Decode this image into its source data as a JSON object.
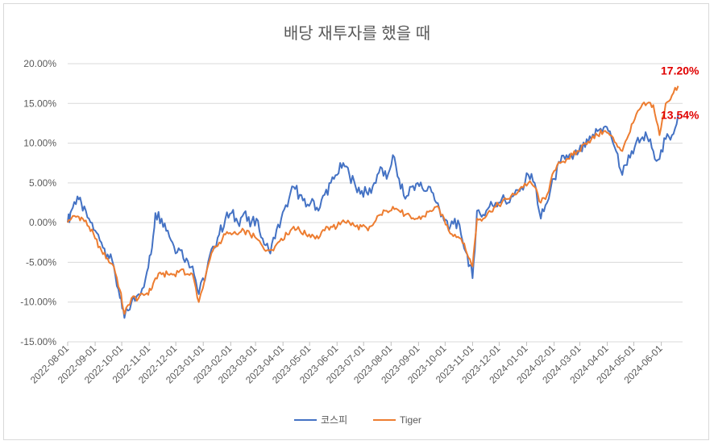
{
  "chart_data": {
    "type": "line",
    "title": "배당 재투자를 했을 때",
    "xlabel": "",
    "ylabel": "",
    "ylim": [
      -15,
      20
    ],
    "y_ticks": [
      "20.00%",
      "15.00%",
      "10.00%",
      "5.00%",
      "0.00%",
      "-5.00%",
      "-10.00%",
      "-15.00%"
    ],
    "x_ticks": [
      "2022-08-01",
      "2022-09-01",
      "2022-10-01",
      "2022-11-01",
      "2022-12-01",
      "2023-01-01",
      "2023-02-01",
      "2023-03-01",
      "2023-04-01",
      "2023-05-01",
      "2023-06-01",
      "2023-07-01",
      "2023-08-01",
      "2023-09-01",
      "2023-10-01",
      "2023-11-01",
      "2023-12-01",
      "2024-01-01",
      "2024-02-01",
      "2024-03-01",
      "2024-04-01",
      "2024-05-01",
      "2024-06-01"
    ],
    "grid": true,
    "legend": "bottom",
    "series": [
      {
        "name": "코스피",
        "color": "#4472c4",
        "points": [
          [
            "2022-08-01",
            0.0
          ],
          [
            "2022-08-05",
            1.5
          ],
          [
            "2022-08-12",
            3.3
          ],
          [
            "2022-08-18",
            1.5
          ],
          [
            "2022-08-25",
            0.5
          ],
          [
            "2022-09-01",
            -1.0
          ],
          [
            "2022-09-08",
            -2.5
          ],
          [
            "2022-09-15",
            -4.0
          ],
          [
            "2022-09-22",
            -5.5
          ],
          [
            "2022-09-29",
            -9.5
          ],
          [
            "2022-10-04",
            -12.0
          ],
          [
            "2022-10-12",
            -10.0
          ],
          [
            "2022-10-20",
            -9.0
          ],
          [
            "2022-10-28",
            -7.0
          ],
          [
            "2022-11-03",
            -4.0
          ],
          [
            "2022-11-08",
            1.2
          ],
          [
            "2022-11-15",
            0.5
          ],
          [
            "2022-11-22",
            -1.0
          ],
          [
            "2022-11-29",
            -3.0
          ],
          [
            "2022-12-06",
            -3.5
          ],
          [
            "2022-12-13",
            -4.5
          ],
          [
            "2022-12-20",
            -5.5
          ],
          [
            "2022-12-27",
            -9.0
          ],
          [
            "2023-01-05",
            -6.0
          ],
          [
            "2023-01-12",
            -3.0
          ],
          [
            "2023-01-19",
            -1.5
          ],
          [
            "2023-01-26",
            0.5
          ],
          [
            "2023-02-02",
            1.2
          ],
          [
            "2023-02-09",
            0.0
          ],
          [
            "2023-02-16",
            1.2
          ],
          [
            "2023-02-23",
            -0.5
          ],
          [
            "2023-03-02",
            0.5
          ],
          [
            "2023-03-09",
            -2.0
          ],
          [
            "2023-03-16",
            -3.5
          ],
          [
            "2023-03-23",
            -2.0
          ],
          [
            "2023-03-30",
            0.5
          ],
          [
            "2023-04-06",
            2.0
          ],
          [
            "2023-04-13",
            4.5
          ],
          [
            "2023-04-20",
            3.5
          ],
          [
            "2023-04-27",
            2.0
          ],
          [
            "2023-05-04",
            3.0
          ],
          [
            "2023-05-11",
            1.5
          ],
          [
            "2023-05-18",
            3.5
          ],
          [
            "2023-05-25",
            5.0
          ],
          [
            "2023-06-01",
            6.0
          ],
          [
            "2023-06-08",
            7.5
          ],
          [
            "2023-06-15",
            6.0
          ],
          [
            "2023-06-22",
            4.5
          ],
          [
            "2023-06-29",
            4.0
          ],
          [
            "2023-07-06",
            3.5
          ],
          [
            "2023-07-13",
            5.0
          ],
          [
            "2023-07-20",
            7.0
          ],
          [
            "2023-07-27",
            5.5
          ],
          [
            "2023-08-03",
            8.5
          ],
          [
            "2023-08-10",
            5.5
          ],
          [
            "2023-08-17",
            3.0
          ],
          [
            "2023-08-24",
            4.5
          ],
          [
            "2023-08-31",
            5.0
          ],
          [
            "2023-09-07",
            4.0
          ],
          [
            "2023-09-14",
            4.5
          ],
          [
            "2023-09-21",
            2.5
          ],
          [
            "2023-09-28",
            1.0
          ],
          [
            "2023-10-05",
            -1.0
          ],
          [
            "2023-10-12",
            0.5
          ],
          [
            "2023-10-19",
            -1.5
          ],
          [
            "2023-10-26",
            -4.0
          ],
          [
            "2023-11-01",
            -7.0
          ],
          [
            "2023-11-06",
            1.5
          ],
          [
            "2023-11-13",
            1.0
          ],
          [
            "2023-11-20",
            2.0
          ],
          [
            "2023-11-27",
            2.5
          ],
          [
            "2023-12-04",
            3.0
          ],
          [
            "2023-12-11",
            2.5
          ],
          [
            "2023-12-18",
            3.5
          ],
          [
            "2023-12-26",
            4.5
          ],
          [
            "2024-01-03",
            6.0
          ],
          [
            "2024-01-10",
            5.0
          ],
          [
            "2024-01-17",
            0.5
          ],
          [
            "2024-01-24",
            2.5
          ],
          [
            "2024-02-01",
            5.5
          ],
          [
            "2024-02-08",
            7.5
          ],
          [
            "2024-02-15",
            8.5
          ],
          [
            "2024-02-22",
            8.0
          ],
          [
            "2024-02-29",
            9.0
          ],
          [
            "2024-03-07",
            9.5
          ],
          [
            "2024-03-14",
            10.5
          ],
          [
            "2024-03-21",
            11.5
          ],
          [
            "2024-03-28",
            12.0
          ],
          [
            "2024-04-04",
            11.5
          ],
          [
            "2024-04-11",
            9.0
          ],
          [
            "2024-04-18",
            6.0
          ],
          [
            "2024-04-25",
            8.5
          ],
          [
            "2024-05-02",
            9.5
          ],
          [
            "2024-05-09",
            10.5
          ],
          [
            "2024-05-16",
            10.8
          ],
          [
            "2024-05-23",
            9.0
          ],
          [
            "2024-05-30",
            8.0
          ],
          [
            "2024-06-06",
            10.5
          ],
          [
            "2024-06-13",
            11.0
          ],
          [
            "2024-06-20",
            13.54
          ]
        ]
      },
      {
        "name": "Tiger",
        "color": "#ed7d31",
        "points": [
          [
            "2022-08-01",
            0.0
          ],
          [
            "2022-08-05",
            0.5
          ],
          [
            "2022-08-12",
            0.8
          ],
          [
            "2022-08-18",
            0.5
          ],
          [
            "2022-08-25",
            -0.5
          ],
          [
            "2022-09-01",
            -2.0
          ],
          [
            "2022-09-08",
            -3.5
          ],
          [
            "2022-09-15",
            -4.5
          ],
          [
            "2022-09-22",
            -5.5
          ],
          [
            "2022-09-29",
            -8.5
          ],
          [
            "2022-10-04",
            -11.5
          ],
          [
            "2022-10-12",
            -9.5
          ],
          [
            "2022-10-20",
            -9.5
          ],
          [
            "2022-10-28",
            -9.0
          ],
          [
            "2022-11-03",
            -8.5
          ],
          [
            "2022-11-08",
            -7.0
          ],
          [
            "2022-11-15",
            -6.5
          ],
          [
            "2022-11-22",
            -6.5
          ],
          [
            "2022-11-29",
            -6.5
          ],
          [
            "2022-12-06",
            -6.0
          ],
          [
            "2022-12-13",
            -6.5
          ],
          [
            "2022-12-20",
            -6.5
          ],
          [
            "2022-12-27",
            -10.0
          ],
          [
            "2023-01-05",
            -6.0
          ],
          [
            "2023-01-12",
            -3.5
          ],
          [
            "2023-01-19",
            -2.5
          ],
          [
            "2023-01-26",
            -1.5
          ],
          [
            "2023-02-02",
            -1.5
          ],
          [
            "2023-02-09",
            -1.5
          ],
          [
            "2023-02-16",
            -1.0
          ],
          [
            "2023-02-23",
            -1.5
          ],
          [
            "2023-03-02",
            -2.0
          ],
          [
            "2023-03-09",
            -3.0
          ],
          [
            "2023-03-16",
            -3.5
          ],
          [
            "2023-03-23",
            -3.0
          ],
          [
            "2023-03-30",
            -2.0
          ],
          [
            "2023-04-06",
            -1.5
          ],
          [
            "2023-04-13",
            -0.5
          ],
          [
            "2023-04-20",
            -1.0
          ],
          [
            "2023-04-27",
            -1.5
          ],
          [
            "2023-05-04",
            -1.5
          ],
          [
            "2023-05-11",
            -2.0
          ],
          [
            "2023-05-18",
            -1.0
          ],
          [
            "2023-05-25",
            -0.5
          ],
          [
            "2023-06-01",
            -0.5
          ],
          [
            "2023-06-08",
            0.3
          ],
          [
            "2023-06-15",
            0.0
          ],
          [
            "2023-06-22",
            -0.5
          ],
          [
            "2023-06-29",
            -0.5
          ],
          [
            "2023-07-06",
            -1.0
          ],
          [
            "2023-07-13",
            0.0
          ],
          [
            "2023-07-20",
            1.0
          ],
          [
            "2023-07-27",
            1.5
          ],
          [
            "2023-08-03",
            2.0
          ],
          [
            "2023-08-10",
            1.5
          ],
          [
            "2023-08-17",
            1.0
          ],
          [
            "2023-08-24",
            0.5
          ],
          [
            "2023-08-31",
            0.5
          ],
          [
            "2023-09-07",
            0.8
          ],
          [
            "2023-09-14",
            1.5
          ],
          [
            "2023-09-21",
            2.0
          ],
          [
            "2023-09-28",
            1.0
          ],
          [
            "2023-10-05",
            -1.0
          ],
          [
            "2023-10-12",
            -1.5
          ],
          [
            "2023-10-19",
            -2.0
          ],
          [
            "2023-10-26",
            -4.0
          ],
          [
            "2023-11-01",
            -5.5
          ],
          [
            "2023-11-06",
            0.5
          ],
          [
            "2023-11-13",
            0.5
          ],
          [
            "2023-11-20",
            1.5
          ],
          [
            "2023-11-27",
            2.0
          ],
          [
            "2023-12-04",
            2.5
          ],
          [
            "2023-12-11",
            3.0
          ],
          [
            "2023-12-18",
            3.5
          ],
          [
            "2023-12-26",
            4.5
          ],
          [
            "2024-01-03",
            5.0
          ],
          [
            "2024-01-10",
            4.5
          ],
          [
            "2024-01-17",
            2.5
          ],
          [
            "2024-01-24",
            3.5
          ],
          [
            "2024-02-01",
            6.5
          ],
          [
            "2024-02-08",
            7.5
          ],
          [
            "2024-02-15",
            8.0
          ],
          [
            "2024-02-22",
            8.5
          ],
          [
            "2024-02-29",
            9.0
          ],
          [
            "2024-03-07",
            10.0
          ],
          [
            "2024-03-14",
            10.5
          ],
          [
            "2024-03-21",
            11.0
          ],
          [
            "2024-03-28",
            11.5
          ],
          [
            "2024-04-04",
            11.0
          ],
          [
            "2024-04-11",
            10.0
          ],
          [
            "2024-04-18",
            9.0
          ],
          [
            "2024-04-25",
            11.0
          ],
          [
            "2024-05-02",
            13.0
          ],
          [
            "2024-05-09",
            14.5
          ],
          [
            "2024-05-16",
            15.0
          ],
          [
            "2024-05-23",
            14.8
          ],
          [
            "2024-05-30",
            11.0
          ],
          [
            "2024-06-06",
            15.0
          ],
          [
            "2024-06-13",
            16.0
          ],
          [
            "2024-06-20",
            17.2
          ]
        ]
      }
    ],
    "annotations": [
      {
        "text": "17.20%",
        "series": "Tiger"
      },
      {
        "text": "13.54%",
        "series": "코스피"
      }
    ]
  }
}
